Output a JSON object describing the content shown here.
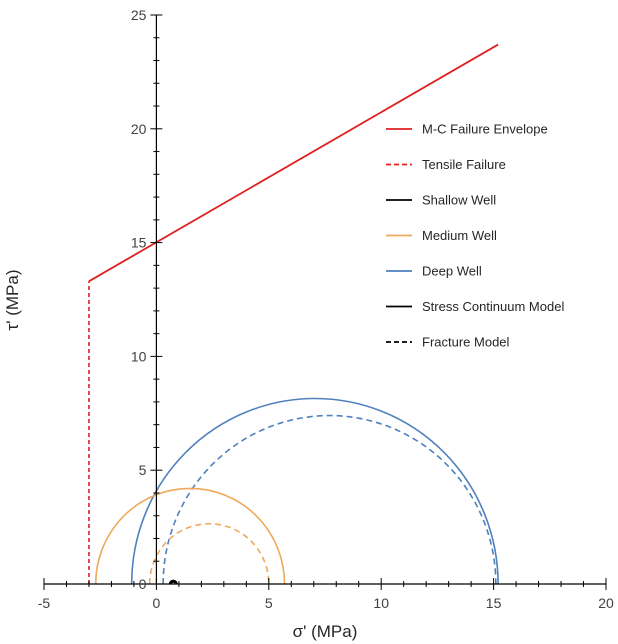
{
  "chart_data": {
    "type": "line",
    "title": "",
    "xlabel": "σ' (MPa)",
    "ylabel": "τ' (MPa)",
    "xlim": [
      -5,
      20
    ],
    "ylim": [
      0,
      25
    ],
    "x_ticks": [
      -5,
      0,
      5,
      10,
      15,
      20
    ],
    "y_ticks": [
      0,
      5,
      10,
      15,
      20,
      25
    ],
    "grid": false,
    "legend_position": "right",
    "colors": {
      "failure": "#e02020",
      "shallow": "#000000",
      "medium": "#f0a95c",
      "deep": "#4f81bd"
    },
    "legend": [
      {
        "label": "M-C Failure Envelope",
        "color": "#e02020",
        "dash": false
      },
      {
        "label": "Tensile Failure",
        "color": "#e02020",
        "dash": true
      },
      {
        "label": "Shallow Well",
        "color": "#000000",
        "dash": false
      },
      {
        "label": "Medium Well",
        "color": "#f0a95c",
        "dash": false
      },
      {
        "label": "Deep Well",
        "color": "#4f81bd",
        "dash": false
      },
      {
        "label": "Stress Continuum Model",
        "color": "#000000",
        "dash": false
      },
      {
        "label": "Fracture Model",
        "color": "#000000",
        "dash": true
      }
    ],
    "failure_envelope": {
      "x": [
        -3,
        15.2
      ],
      "y": [
        13.3,
        23.7
      ]
    },
    "tensile_failure": {
      "x": [
        -3,
        -3
      ],
      "y": [
        0,
        13.3
      ]
    },
    "circles": [
      {
        "well": "Deep Well",
        "model": "Stress Continuum Model",
        "sigma3": -1.1,
        "sigma1": 15.2,
        "color": "#4f81bd",
        "dash": false
      },
      {
        "well": "Deep Well",
        "model": "Fracture Model",
        "sigma3": 0.3,
        "sigma1": 15.1,
        "color": "#4f81bd",
        "dash": true
      },
      {
        "well": "Medium Well",
        "model": "Stress Continuum Model",
        "sigma3": -2.7,
        "sigma1": 5.7,
        "color": "#f0a95c",
        "dash": false
      },
      {
        "well": "Medium Well",
        "model": "Fracture Model",
        "sigma3": -0.3,
        "sigma1": 5.0,
        "color": "#f0a95c",
        "dash": true
      },
      {
        "well": "Shallow Well",
        "model": "Stress Continuum Model",
        "sigma3": 0.6,
        "sigma1": 0.9,
        "color": "#000000",
        "dash": false
      },
      {
        "well": "Shallow Well",
        "model": "Fracture Model",
        "sigma3": 0.65,
        "sigma1": 0.85,
        "color": "#000000",
        "dash": true
      }
    ]
  }
}
